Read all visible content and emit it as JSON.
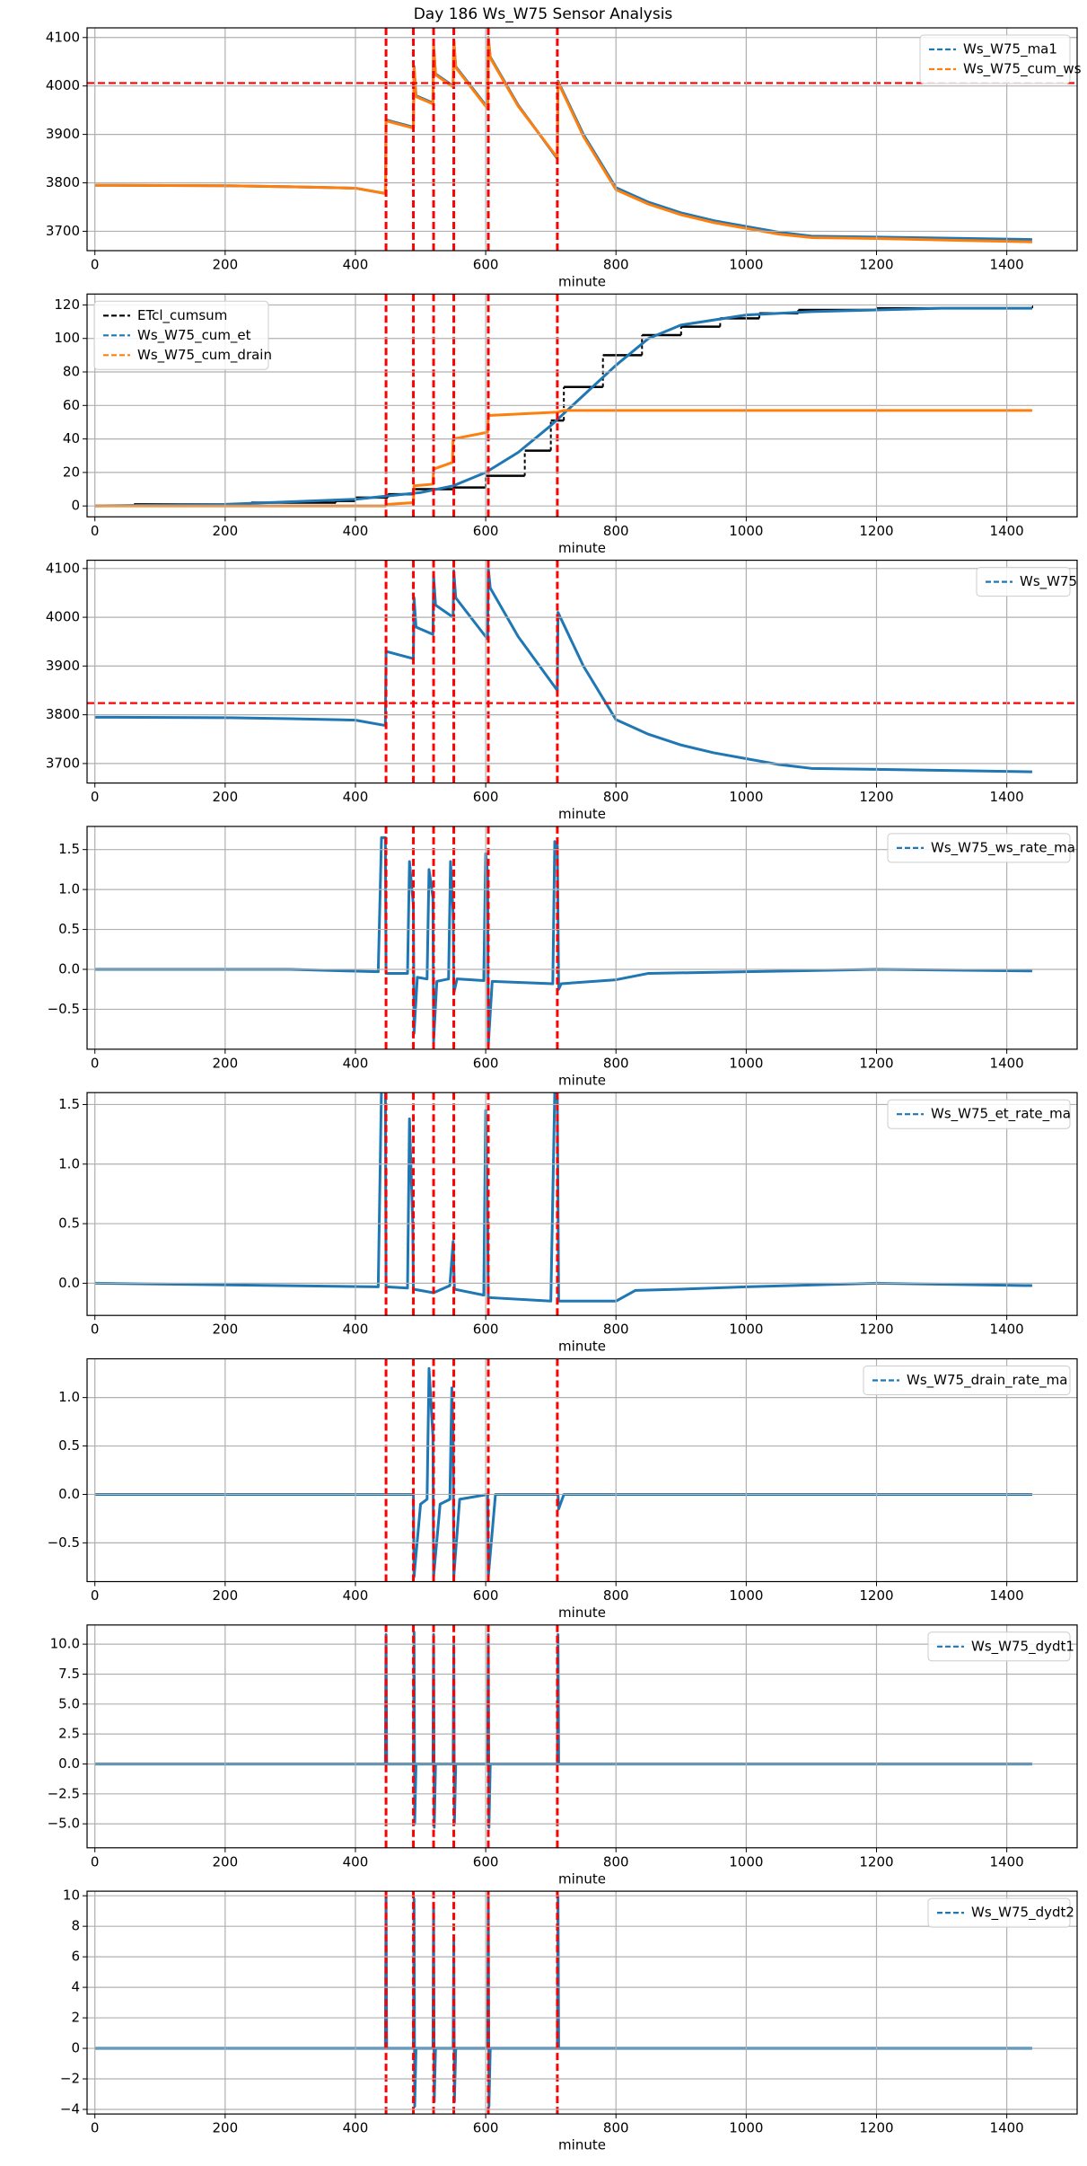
{
  "title": "Day 186 Ws_W75 Sensor Analysis",
  "chart_data": [
    {
      "type": "line",
      "xlabel": "minute",
      "xlim": [
        -12,
        1508
      ],
      "xticks": [
        0,
        200,
        400,
        600,
        800,
        1000,
        1200,
        1400
      ],
      "ylim": [
        3660,
        4120
      ],
      "yticks": [
        3700,
        3800,
        3900,
        4000,
        4100
      ],
      "grid": true,
      "legend": "upper right",
      "vlines": [
        447,
        489,
        520,
        551,
        604,
        710
      ],
      "vline_color": "#ff0000",
      "hline": 4006,
      "series": [
        {
          "name": "Ws_W75_ma1",
          "color": "#1f77b4",
          "x": [
            0,
            200,
            300,
            400,
            446,
            447,
            489,
            490,
            493,
            519,
            520,
            523,
            550,
            551,
            554,
            603,
            604,
            607,
            650,
            710,
            711,
            750,
            800,
            850,
            900,
            950,
            1000,
            1050,
            1100,
            1200,
            1300,
            1439
          ],
          "values": [
            3795,
            3794,
            3792,
            3789,
            3778,
            3930,
            3915,
            4040,
            3980,
            3965,
            4085,
            4025,
            4000,
            4095,
            4040,
            3955,
            4100,
            4060,
            3960,
            3850,
            4010,
            3900,
            3790,
            3760,
            3738,
            3722,
            3710,
            3698,
            3690,
            3688,
            3686,
            3683
          ]
        },
        {
          "name": "Ws_W75_cum_ws",
          "color": "#ff7f0e",
          "x": [
            0,
            200,
            300,
            400,
            446,
            447,
            489,
            490,
            493,
            519,
            520,
            523,
            550,
            551,
            554,
            603,
            604,
            607,
            650,
            710,
            711,
            750,
            800,
            850,
            900,
            950,
            1000,
            1050,
            1100,
            1200,
            1300,
            1439
          ],
          "values": [
            3795,
            3794,
            3792,
            3789,
            3778,
            3928,
            3913,
            4038,
            3978,
            3963,
            4083,
            4023,
            3998,
            4093,
            4038,
            3953,
            4098,
            4058,
            3958,
            3852,
            4008,
            3896,
            3786,
            3756,
            3734,
            3718,
            3706,
            3694,
            3687,
            3685,
            3682,
            3678
          ]
        }
      ]
    },
    {
      "type": "line",
      "xlabel": "minute",
      "xlim": [
        -12,
        1508
      ],
      "xticks": [
        0,
        200,
        400,
        600,
        800,
        1000,
        1200,
        1400
      ],
      "ylim": [
        -6.5,
        126.5
      ],
      "yticks": [
        0,
        20,
        40,
        60,
        80,
        100,
        120
      ],
      "grid": true,
      "legend": "upper left",
      "vlines": [
        447,
        489,
        520,
        551,
        604,
        710
      ],
      "vline_color": "#ff0000",
      "series": [
        {
          "name": "ETcl_cumsum",
          "color": "#000000",
          "drawstyle": "steps-post",
          "x": [
            0,
            60,
            240,
            370,
            400,
            450,
            490,
            550,
            600,
            660,
            700,
            720,
            780,
            840,
            900,
            960,
            1020,
            1080,
            1200,
            1439
          ],
          "values": [
            0,
            1,
            2,
            3,
            5,
            7,
            10,
            11,
            18,
            33,
            51,
            71,
            90,
            102,
            107,
            112,
            115,
            117,
            118,
            119
          ]
        },
        {
          "name": "Ws_W75_cum_et",
          "color": "#1f77b4",
          "x": [
            0,
            200,
            400,
            500,
            550,
            600,
            650,
            700,
            750,
            800,
            850,
            900,
            1000,
            1100,
            1200,
            1300,
            1439
          ],
          "values": [
            0,
            1,
            4,
            8,
            12,
            20,
            32,
            48,
            66,
            84,
            100,
            108,
            114,
            116,
            117,
            118,
            118
          ]
        },
        {
          "name": "Ws_W75_cum_drain",
          "color": "#ff7f0e",
          "x": [
            0,
            446,
            450,
            489,
            490,
            519,
            520,
            549,
            550,
            603,
            604,
            710,
            720,
            1439
          ],
          "values": [
            0,
            0,
            1,
            2,
            12,
            13,
            22,
            26,
            40,
            44,
            54,
            56,
            57,
            57
          ]
        }
      ]
    },
    {
      "type": "line",
      "xlabel": "minute",
      "xlim": [
        -12,
        1508
      ],
      "xticks": [
        0,
        200,
        400,
        600,
        800,
        1000,
        1200,
        1400
      ],
      "ylim": [
        3660,
        4117
      ],
      "yticks": [
        3700,
        3800,
        3900,
        4000,
        4100
      ],
      "grid": true,
      "legend": "upper right",
      "vlines": [
        447,
        489,
        520,
        551,
        604,
        710
      ],
      "vline_color": "#ff0000",
      "hline": 3824,
      "series": [
        {
          "name": "Ws_W75",
          "color": "#1f77b4",
          "x": [
            0,
            200,
            300,
            400,
            446,
            447,
            489,
            490,
            493,
            519,
            520,
            523,
            550,
            551,
            554,
            603,
            604,
            607,
            650,
            710,
            711,
            750,
            800,
            850,
            900,
            950,
            1000,
            1050,
            1100,
            1200,
            1300,
            1439
          ],
          "values": [
            3795,
            3794,
            3792,
            3789,
            3778,
            3930,
            3915,
            4040,
            3980,
            3965,
            4085,
            4025,
            4000,
            4095,
            4040,
            3955,
            4100,
            4060,
            3960,
            3850,
            4010,
            3900,
            3790,
            3760,
            3738,
            3722,
            3710,
            3698,
            3690,
            3688,
            3686,
            3683
          ]
        }
      ]
    },
    {
      "type": "line",
      "xlabel": "minute",
      "xlim": [
        -12,
        1508
      ],
      "xticks": [
        0,
        200,
        400,
        600,
        800,
        1000,
        1200,
        1400
      ],
      "ylim": [
        -1.0,
        1.79
      ],
      "yticks": [
        {
          "value": -0.5,
          "label": "−0.5"
        },
        {
          "value": 0,
          "label": "0.0"
        },
        0.5,
        {
          "value": 1,
          "label": "1.0"
        },
        1.5
      ],
      "grid": true,
      "legend": "upper right",
      "vlines": [
        447,
        489,
        520,
        551,
        604,
        710
      ],
      "vline_color": "#ff0000",
      "series": [
        {
          "name": "Ws_W75_ws_rate_ma",
          "color": "#1f77b4",
          "x": [
            0,
            300,
            435,
            440,
            446,
            447,
            480,
            483,
            489,
            490,
            495,
            510,
            513,
            519,
            520,
            525,
            543,
            546,
            550,
            551,
            556,
            597,
            600,
            603,
            604,
            610,
            703,
            706,
            710,
            712,
            716,
            800,
            850,
            1000,
            1200,
            1439
          ],
          "values": [
            0,
            0,
            -0.03,
            1.65,
            1.65,
            -0.05,
            -0.05,
            1.35,
            0.8,
            -0.8,
            -0.1,
            -0.12,
            1.25,
            0.9,
            -0.9,
            -0.15,
            -0.12,
            1.35,
            0.7,
            -0.3,
            -0.12,
            -0.14,
            1.45,
            1.2,
            -0.95,
            -0.15,
            -0.18,
            1.6,
            1.55,
            -0.25,
            -0.18,
            -0.13,
            -0.05,
            -0.03,
            0,
            -0.02
          ]
        }
      ]
    },
    {
      "type": "line",
      "xlabel": "minute",
      "xlim": [
        -12,
        1508
      ],
      "xticks": [
        0,
        200,
        400,
        600,
        800,
        1000,
        1200,
        1400
      ],
      "ylim": [
        -0.27,
        1.6
      ],
      "yticks": [
        {
          "value": 0,
          "label": "0.0"
        },
        0.5,
        {
          "value": 1,
          "label": "1.0"
        },
        1.5
      ],
      "grid": true,
      "legend": "upper right",
      "vlines": [
        447,
        489,
        520,
        551,
        604,
        710
      ],
      "vline_color": "#ff0000",
      "series": [
        {
          "name": "Ws_W75_et_rate_ma",
          "color": "#1f77b4",
          "x": [
            0,
            435,
            440,
            446,
            447,
            480,
            483,
            488,
            489,
            520,
            545,
            550,
            552,
            597,
            600,
            603,
            604,
            700,
            706,
            710,
            712,
            800,
            830,
            900,
            1000,
            1200,
            1439
          ],
          "values": [
            0,
            -0.03,
            1.65,
            1.65,
            -0.03,
            -0.04,
            1.38,
            0.5,
            -0.05,
            -0.08,
            -0.02,
            0.35,
            -0.05,
            -0.1,
            1.45,
            0.5,
            -0.12,
            -0.15,
            1.6,
            1.55,
            -0.15,
            -0.15,
            -0.06,
            -0.05,
            -0.03,
            0,
            -0.02
          ]
        }
      ]
    },
    {
      "type": "line",
      "xlabel": "minute",
      "xlim": [
        -12,
        1508
      ],
      "xticks": [
        0,
        200,
        400,
        600,
        800,
        1000,
        1200,
        1400
      ],
      "ylim": [
        -0.9,
        1.4
      ],
      "yticks": [
        {
          "value": -0.5,
          "label": "−0.5"
        },
        {
          "value": 0,
          "label": "0.0"
        },
        0.5,
        {
          "value": 1,
          "label": "1.0"
        }
      ],
      "grid": true,
      "legend": "upper right",
      "vlines": [
        447,
        489,
        520,
        551,
        604,
        710
      ],
      "vline_color": "#ff0000",
      "series": [
        {
          "name": "Ws_W75_drain_rate_ma",
          "color": "#1f77b4",
          "x": [
            0,
            489,
            490,
            500,
            510,
            513,
            519,
            520,
            530,
            545,
            548,
            550,
            551,
            560,
            603,
            604,
            615,
            711,
            712,
            720,
            1439
          ],
          "values": [
            0,
            0,
            -0.85,
            -0.1,
            -0.05,
            1.3,
            0.6,
            -0.85,
            -0.1,
            -0.05,
            1.1,
            0.6,
            -0.85,
            -0.05,
            0,
            -0.85,
            0,
            0,
            -0.15,
            0,
            0
          ]
        }
      ]
    },
    {
      "type": "line",
      "xlabel": "minute",
      "xlim": [
        -12,
        1508
      ],
      "xticks": [
        0,
        200,
        400,
        600,
        800,
        1000,
        1200,
        1400
      ],
      "ylim": [
        -7,
        11.6
      ],
      "yticks": [
        {
          "value": -5,
          "label": "−5.0"
        },
        {
          "value": -2.5,
          "label": "−2.5"
        },
        {
          "value": 0,
          "label": "0.0"
        },
        2.5,
        {
          "value": 5,
          "label": "5.0"
        },
        7.5,
        {
          "value": 10,
          "label": "10.0"
        }
      ],
      "grid": true,
      "legend": "upper right",
      "vlines": [
        447,
        489,
        520,
        551,
        604,
        710
      ],
      "vline_color": "#ff0000",
      "series": [
        {
          "name": "Ws_W75_dydt1",
          "color": "#1f77b4",
          "x": [
            0,
            446,
            447,
            448,
            489,
            490,
            491,
            493,
            519,
            520,
            521,
            523,
            550,
            551,
            552,
            554,
            603,
            604,
            605,
            607,
            710,
            711,
            712,
            1439
          ],
          "values": [
            0,
            0,
            10.8,
            0,
            0,
            11,
            -5,
            0,
            0,
            10.8,
            -5.3,
            0,
            0,
            10,
            -5,
            0,
            0,
            10.8,
            -5.3,
            0,
            0,
            10.8,
            0,
            0
          ]
        }
      ]
    },
    {
      "type": "line",
      "xlabel": "minute",
      "xlim": [
        -12,
        1508
      ],
      "xticks": [
        0,
        200,
        400,
        600,
        800,
        1000,
        1200,
        1400
      ],
      "ylim": [
        -4.3,
        10.3
      ],
      "yticks": [
        {
          "value": -4,
          "label": "−4"
        },
        {
          "value": -2,
          "label": "−2"
        },
        0,
        2,
        4,
        6,
        8,
        10
      ],
      "grid": true,
      "legend": "upper right",
      "vlines": [
        447,
        489,
        520,
        551,
        604,
        710
      ],
      "vline_color": "#ff0000",
      "series": [
        {
          "name": "Ws_W75_dydt2",
          "color": "#1f77b4",
          "x": [
            0,
            446,
            447,
            448,
            489,
            490,
            491,
            493,
            519,
            520,
            521,
            523,
            550,
            551,
            552,
            554,
            603,
            604,
            605,
            607,
            710,
            711,
            712,
            1439
          ],
          "values": [
            0,
            0,
            10,
            0,
            0,
            9.8,
            -3.8,
            0,
            0,
            9.5,
            -3.5,
            0,
            0,
            7,
            -3.5,
            0,
            0,
            10,
            -3.8,
            0,
            0,
            10,
            0,
            0
          ]
        }
      ]
    }
  ]
}
